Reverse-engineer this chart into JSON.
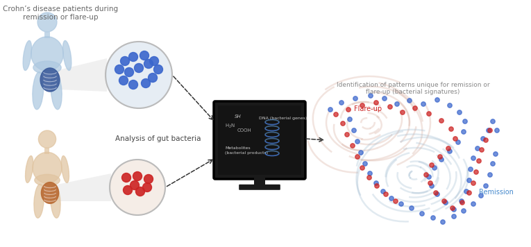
{
  "bg_color": "#ffffff",
  "title_text": "Crohn’s disease patients during\nremission or flare-up",
  "title_color": "#666666",
  "analysis_text": "Analysis of gut bacteria",
  "analysis_color": "#444444",
  "identify_text": "Identification of patterns unique for remission or\nflare-up (bacterial signatures)",
  "identify_color": "#888888",
  "flareup_label": "Flare-up",
  "flareup_color": "#cc2222",
  "remission_label": "Remission",
  "remission_color": "#4488cc",
  "human_top_color": "#adc8e0",
  "human_bottom_color": "#e0c4a0",
  "gut_top_color": "#3a5a9a",
  "gut_bottom_color": "#b86830",
  "circle_top_color": "#c8d8e8",
  "circle_bottom_color": "#e8d4c4",
  "blue_dot_color": "#3a66cc",
  "red_dot_color": "#cc2222",
  "fp_warm_color": "#d4a898",
  "fp_cool_color": "#96b4cc",
  "monitor_bg": "#0a0a0a",
  "monitor_frame": "#1a1a1a",
  "monitor_stand": "#1a1a1a",
  "arrow_color": "#333333",
  "beam_color": "#cccccc"
}
